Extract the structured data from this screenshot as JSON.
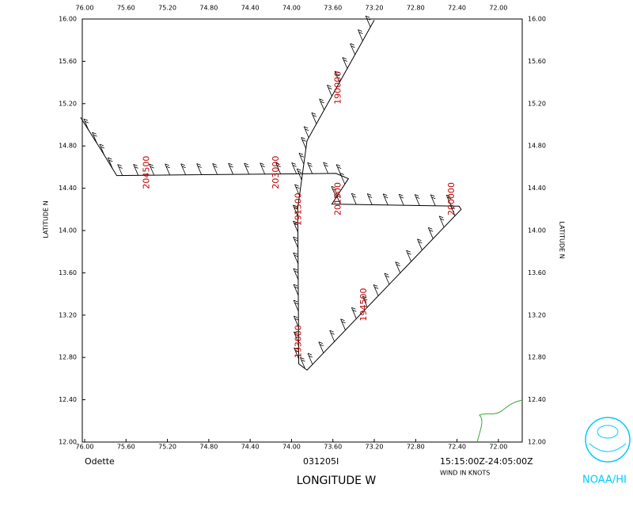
{
  "chart_data": {
    "type": "line",
    "title": "Odette",
    "subtitle": "031205I",
    "time_range": "15:15:00Z-24:05:00Z",
    "note": "WIND IN KNOTS",
    "xlabel": "LONGITUDE   W",
    "ylabel": "LATITUDE   N",
    "logo": "NOAA/HI",
    "xlim": [
      76,
      71.8
    ],
    "ylim": [
      12,
      16
    ],
    "xticks": [
      {
        "value": 76,
        "label": "76.00"
      },
      {
        "value": 75.6,
        "label": "75.60"
      },
      {
        "value": 75.2,
        "label": "75.20"
      },
      {
        "value": 74.8,
        "label": "74.80"
      },
      {
        "value": 74.4,
        "label": "74.40"
      },
      {
        "value": 74,
        "label": "74.00"
      },
      {
        "value": 73.6,
        "label": "73.60"
      },
      {
        "value": 73.2,
        "label": "73.20"
      },
      {
        "value": 72.8,
        "label": "72.80"
      },
      {
        "value": 72.4,
        "label": "72.40"
      },
      {
        "value": 72,
        "label": "72.00"
      }
    ],
    "yticks": [
      {
        "value": 12,
        "label": "12.00"
      },
      {
        "value": 12.4,
        "label": "12.40"
      },
      {
        "value": 12.8,
        "label": "12.80"
      },
      {
        "value": 13.2,
        "label": "13.20"
      },
      {
        "value": 13.6,
        "label": "13.60"
      },
      {
        "value": 14,
        "label": "14.00"
      },
      {
        "value": 14.4,
        "label": "14.40"
      },
      {
        "value": 14.8,
        "label": "14.80"
      },
      {
        "value": 15.2,
        "label": "15.20"
      },
      {
        "value": 15.6,
        "label": "15.60"
      },
      {
        "value": 16,
        "label": "16.00"
      }
    ],
    "series": [
      {
        "name": "track",
        "color": "#000000",
        "x": [
          73.2,
          73.85,
          73.94,
          73.93,
          73.85,
          72.36,
          72.38,
          73.61,
          73.45,
          73.57,
          75.69,
          75.84,
          76.04
        ],
        "values": [
          15.99,
          14.85,
          14.21,
          12.74,
          12.68,
          14.2,
          14.23,
          14.25,
          14.49,
          14.54,
          14.52,
          14.76,
          15.07
        ]
      }
    ],
    "time_labels": [
      {
        "text": "190000",
        "lon": 73.55,
        "lat": 15.35
      },
      {
        "text": "191500",
        "lon": 73.93,
        "lat": 14.2
      },
      {
        "text": "193000",
        "lon": 73.93,
        "lat": 12.95
      },
      {
        "text": "194500",
        "lon": 73.3,
        "lat": 13.3
      },
      {
        "text": "200000",
        "lon": 72.45,
        "lat": 14.3
      },
      {
        "text": "201500",
        "lon": 73.55,
        "lat": 14.3
      },
      {
        "text": "203000",
        "lon": 74.15,
        "lat": 14.55
      },
      {
        "text": "204500",
        "lon": 75.4,
        "lat": 14.55
      }
    ]
  }
}
